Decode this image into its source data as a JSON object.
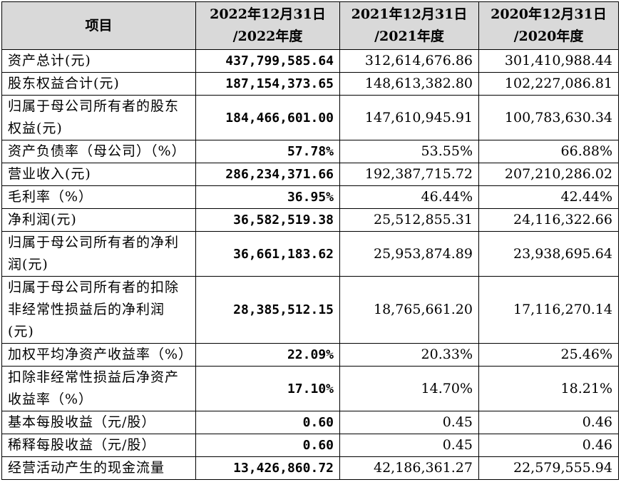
{
  "header": {
    "item": "项目",
    "col2022_line1": "2022年12月31日",
    "col2022_line2": "/2022年度",
    "col2021_line1": "2021年12月31日",
    "col2021_line2": "/2021年度",
    "col2020_line1": "2020年12月31日",
    "col2020_line2": "/2020年度"
  },
  "rows": [
    {
      "label": "资产总计(元)",
      "v2022": "437,799,585.64",
      "v2021": "312,614,676.86",
      "v2020": "301,410,988.44"
    },
    {
      "label": "股东权益合计(元)",
      "v2022": "187,154,373.65",
      "v2021": "148,613,382.80",
      "v2020": "102,227,086.81"
    },
    {
      "label": "归属于母公司所有者的股东权益(元)",
      "v2022": "184,466,601.00",
      "v2021": "147,610,945.91",
      "v2020": "100,783,630.34"
    },
    {
      "label": "资产负债率（母公司）（%）",
      "v2022": "57.78%",
      "v2021": "53.55%",
      "v2020": "66.88%"
    },
    {
      "label": "营业收入(元)",
      "v2022": "286,234,371.66",
      "v2021": "192,387,715.72",
      "v2020": "207,210,286.02"
    },
    {
      "label": "毛利率（%）",
      "v2022": "36.95%",
      "v2021": "46.44%",
      "v2020": "42.44%"
    },
    {
      "label": "净利润(元)",
      "v2022": "36,582,519.38",
      "v2021": "25,512,855.31",
      "v2020": "24,116,322.66"
    },
    {
      "label": "归属于母公司所有者的净利润(元)",
      "v2022": "36,661,183.62",
      "v2021": "25,953,874.89",
      "v2020": "23,938,695.64"
    },
    {
      "label": "归属于母公司所有者的扣除非经常性损益后的净利润(元)",
      "v2022": "28,385,512.15",
      "v2021": "18,765,661.20",
      "v2020": "17,116,270.14"
    },
    {
      "label": "加权平均净资产收益率（%）",
      "v2022": "22.09%",
      "v2021": "20.33%",
      "v2020": "25.46%"
    },
    {
      "label": "扣除非经常性损益后净资产收益率（%）",
      "v2022": "17.10%",
      "v2021": "14.70%",
      "v2020": "18.21%"
    },
    {
      "label": "基本每股收益（元/股）",
      "v2022": "0.60",
      "v2021": "0.45",
      "v2020": "0.46"
    },
    {
      "label": "稀释每股收益（元/股）",
      "v2022": "0.60",
      "v2021": "0.45",
      "v2020": "0.46"
    },
    {
      "label": "经营活动产生的现金流量",
      "v2022": "13,426,860.72",
      "v2021": "42,186,361.27",
      "v2020": "22,579,555.94"
    }
  ]
}
